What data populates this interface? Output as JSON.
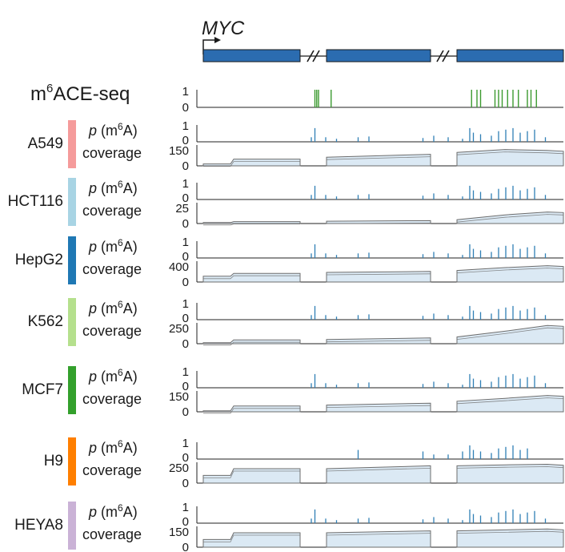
{
  "gene": {
    "name": "MYC"
  },
  "method": {
    "base": "m",
    "sup": "6",
    "rest": "ACE-seq"
  },
  "labels": {
    "p_italic": "p",
    "p_open": " (m",
    "p_sup": "6",
    "p_close": "A)",
    "coverage": "coverage"
  },
  "colors": {
    "exon_fill": "#2b6cb0",
    "ace_bars": "#3b9a2f",
    "p_bars": "#2f7fb5",
    "coverage_fill": "#dbe9f4",
    "coverage_line": "#6e6e6e",
    "axis": "#222222"
  },
  "ace_track": {
    "ymax": "1",
    "ymin": "0",
    "peaks": [
      0.31,
      0.315,
      0.32,
      0.355,
      0.745,
      0.76,
      0.77,
      0.81,
      0.82,
      0.83,
      0.845,
      0.86,
      0.875,
      0.9,
      0.91,
      0.925
    ]
  },
  "cell_lines": [
    {
      "name": "A549",
      "color": "#f59b9b",
      "cov_max": "150",
      "cov_min": "0",
      "p_max": "1",
      "p_min": "0",
      "p_sites": [
        0.3,
        0.31,
        0.34,
        0.37,
        0.43,
        0.46,
        0.61,
        0.64,
        0.68,
        0.72,
        0.74,
        0.75,
        0.77,
        0.8,
        0.82,
        0.84,
        0.86,
        0.88,
        0.9,
        0.92,
        0.95
      ],
      "p_heights": [
        0.3,
        0.9,
        0.3,
        0.2,
        0.3,
        0.35,
        0.25,
        0.4,
        0.3,
        0.2,
        0.9,
        0.6,
        0.5,
        0.4,
        0.7,
        0.8,
        0.9,
        0.6,
        0.7,
        0.8,
        0.3
      ],
      "cov_levels": [
        0.1,
        0.35,
        0.45,
        0.6,
        0.7,
        0.85,
        0.8
      ]
    },
    {
      "name": "HCT116",
      "color": "#a8d4e4",
      "cov_max": "25",
      "cov_min": "0",
      "p_max": "1",
      "p_min": "0",
      "p_sites": [
        0.3,
        0.31,
        0.34,
        0.37,
        0.43,
        0.46,
        0.61,
        0.64,
        0.68,
        0.72,
        0.74,
        0.75,
        0.77,
        0.8,
        0.82,
        0.84,
        0.86,
        0.88,
        0.9,
        0.92,
        0.95
      ],
      "p_heights": [
        0.3,
        0.9,
        0.3,
        0.2,
        0.3,
        0.35,
        0.25,
        0.4,
        0.3,
        0.2,
        0.9,
        0.6,
        0.5,
        0.4,
        0.7,
        0.8,
        0.9,
        0.6,
        0.7,
        0.8,
        0.3
      ],
      "cov_levels": [
        0.05,
        0.1,
        0.12,
        0.15,
        0.2,
        0.45,
        0.6
      ]
    },
    {
      "name": "HepG2",
      "color": "#1f78b4",
      "cov_max": "400",
      "cov_min": "0",
      "p_max": "1",
      "p_min": "0",
      "p_sites": [
        0.3,
        0.31,
        0.34,
        0.37,
        0.43,
        0.46,
        0.61,
        0.64,
        0.68,
        0.72,
        0.74,
        0.75,
        0.77,
        0.8,
        0.82,
        0.84,
        0.86,
        0.88,
        0.9,
        0.92,
        0.95
      ],
      "p_heights": [
        0.3,
        0.9,
        0.3,
        0.2,
        0.3,
        0.35,
        0.25,
        0.4,
        0.3,
        0.2,
        0.9,
        0.6,
        0.5,
        0.4,
        0.7,
        0.8,
        0.9,
        0.6,
        0.7,
        0.8,
        0.3
      ],
      "cov_levels": [
        0.3,
        0.45,
        0.5,
        0.55,
        0.6,
        0.75,
        0.85
      ]
    },
    {
      "name": "K562",
      "color": "#b5e08d",
      "cov_max": "250",
      "cov_min": "0",
      "p_max": "1",
      "p_min": "0",
      "p_sites": [
        0.3,
        0.31,
        0.34,
        0.37,
        0.43,
        0.46,
        0.61,
        0.64,
        0.68,
        0.72,
        0.74,
        0.75,
        0.77,
        0.8,
        0.82,
        0.84,
        0.86,
        0.88,
        0.9,
        0.92,
        0.95
      ],
      "p_heights": [
        0.3,
        0.9,
        0.3,
        0.2,
        0.3,
        0.35,
        0.25,
        0.4,
        0.3,
        0.2,
        0.9,
        0.6,
        0.5,
        0.4,
        0.7,
        0.8,
        0.9,
        0.6,
        0.7,
        0.8,
        0.3
      ],
      "cov_levels": [
        0.05,
        0.2,
        0.22,
        0.3,
        0.35,
        0.65,
        0.95
      ]
    },
    {
      "name": "MCF7",
      "color": "#33a02c",
      "cov_max": "150",
      "cov_min": "0",
      "p_max": "1",
      "p_min": "0",
      "p_sites": [
        0.3,
        0.31,
        0.34,
        0.37,
        0.43,
        0.46,
        0.61,
        0.64,
        0.68,
        0.72,
        0.74,
        0.75,
        0.77,
        0.8,
        0.82,
        0.84,
        0.86,
        0.88,
        0.9,
        0.92,
        0.95
      ],
      "p_heights": [
        0.3,
        0.9,
        0.3,
        0.2,
        0.3,
        0.35,
        0.25,
        0.4,
        0.3,
        0.2,
        0.9,
        0.6,
        0.5,
        0.4,
        0.7,
        0.8,
        0.9,
        0.6,
        0.7,
        0.8,
        0.3
      ],
      "cov_levels": [
        0.05,
        0.3,
        0.35,
        0.45,
        0.55,
        0.7,
        0.85
      ]
    },
    {
      "name": "H9",
      "color": "#ff7f00",
      "cov_max": "250",
      "cov_min": "0",
      "p_max": "1",
      "p_min": "0",
      "p_sites": [
        0.43,
        0.61,
        0.64,
        0.68,
        0.72,
        0.74,
        0.75,
        0.77,
        0.8,
        0.82,
        0.84,
        0.86,
        0.88,
        0.9
      ],
      "p_heights": [
        0.6,
        0.5,
        0.3,
        0.3,
        0.5,
        0.9,
        0.6,
        0.5,
        0.4,
        0.7,
        0.8,
        0.9,
        0.6,
        0.7
      ],
      "cov_levels": [
        0.4,
        0.75,
        0.75,
        0.9,
        0.9,
        0.95,
        0.98
      ]
    },
    {
      "name": "HEYA8",
      "color": "#cab2d6",
      "cov_max": "150",
      "cov_min": "0",
      "p_max": "1",
      "p_min": "0",
      "p_sites": [
        0.3,
        0.31,
        0.34,
        0.37,
        0.43,
        0.46,
        0.61,
        0.64,
        0.68,
        0.72,
        0.74,
        0.75,
        0.77,
        0.8,
        0.82,
        0.84,
        0.86,
        0.88,
        0.9,
        0.92,
        0.95
      ],
      "p_heights": [
        0.3,
        0.9,
        0.3,
        0.2,
        0.3,
        0.35,
        0.25,
        0.4,
        0.3,
        0.2,
        0.9,
        0.6,
        0.5,
        0.4,
        0.7,
        0.8,
        0.9,
        0.6,
        0.7,
        0.8,
        0.3
      ],
      "cov_levels": [
        0.4,
        0.75,
        0.75,
        0.85,
        0.85,
        0.9,
        0.95
      ]
    }
  ]
}
